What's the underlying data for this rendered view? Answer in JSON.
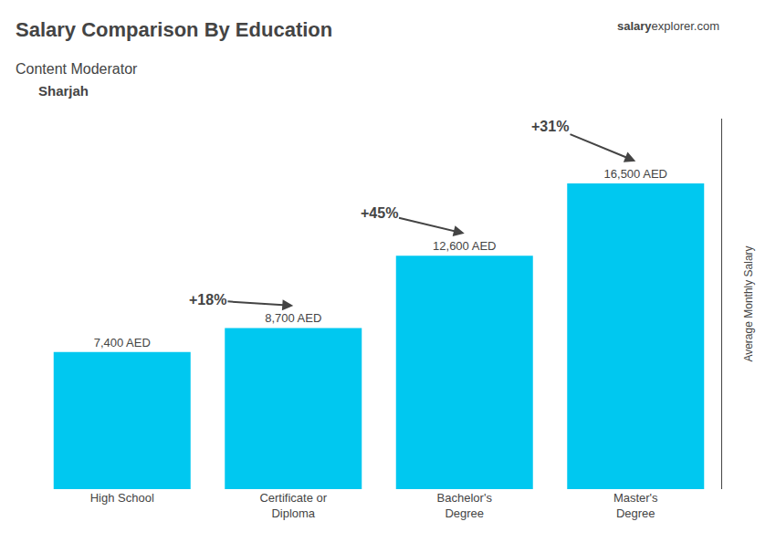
{
  "chart_data": {
    "type": "bar",
    "title": "Salary Comparison By Education",
    "subtitle": "Content Moderator",
    "location": "Sharjah",
    "website": [
      "salary",
      "explorer.com"
    ],
    "ylabel": "Average Monthly Salary",
    "categories": [
      "High School",
      "Certificate or\nDiploma",
      "Bachelor's\nDegree",
      "Master's\nDegree"
    ],
    "values": [
      7400,
      8700,
      12600,
      16500
    ],
    "value_labels": [
      "7,400 AED",
      "8,700 AED",
      "12,600 AED",
      "16,500 AED"
    ],
    "data_labels": true,
    "annotations": [
      "+18%",
      "+45%",
      "+31%"
    ],
    "color": "#00c8f0",
    "ylim": [
      0,
      20000
    ],
    "grid": false,
    "tick_labels": "x"
  }
}
